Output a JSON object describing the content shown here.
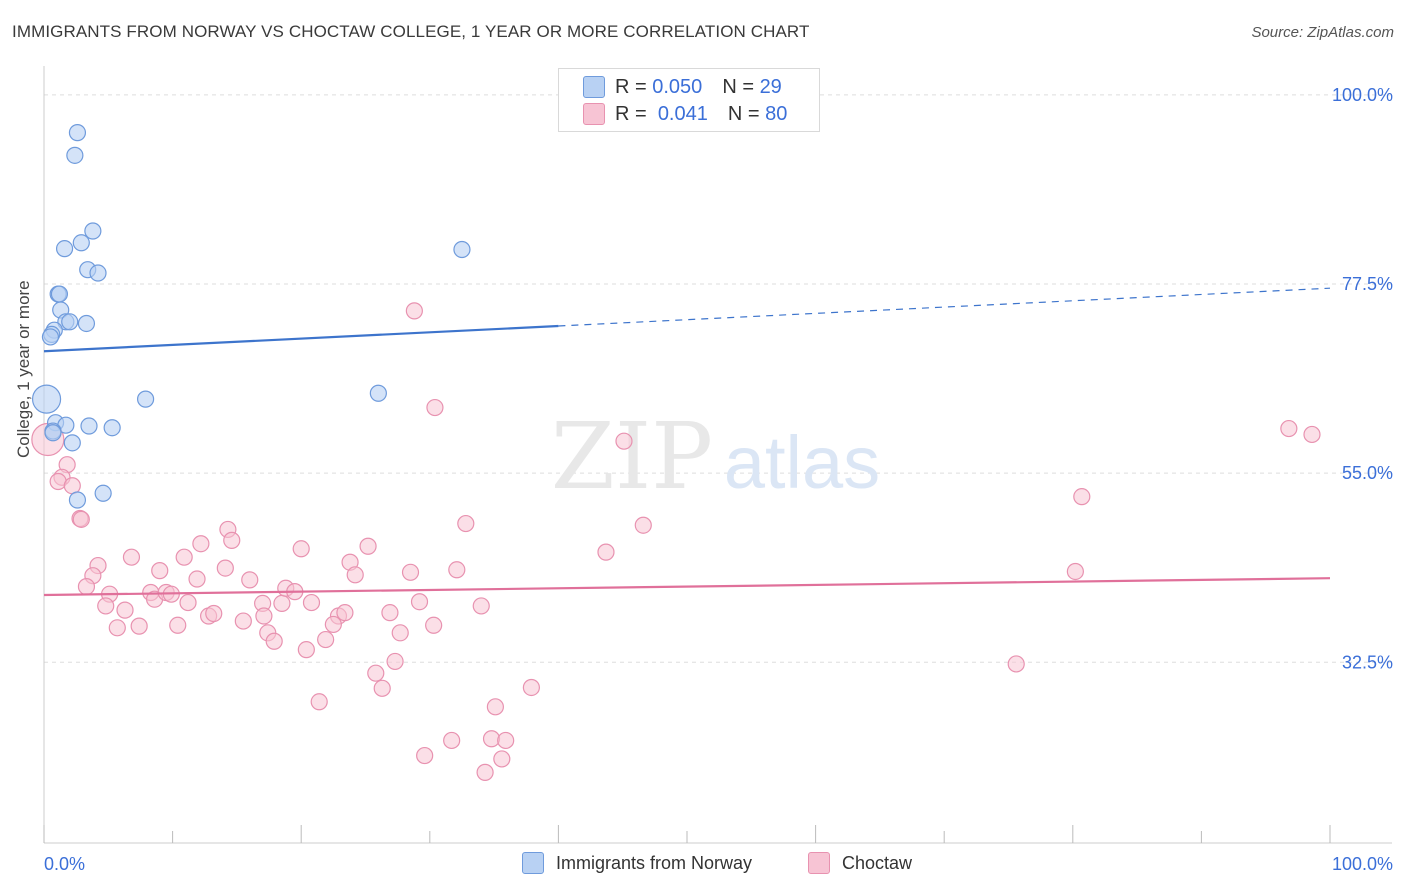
{
  "title": "IMMIGRANTS FROM NORWAY VS CHOCTAW COLLEGE, 1 YEAR OR MORE CORRELATION CHART",
  "source": "Source: ZipAtlas.com",
  "watermark": {
    "zip": "ZIP",
    "atlas": "atlas"
  },
  "legend": {
    "rows": [
      {
        "r_label": "R =",
        "r_value": "0.050",
        "n_label": "N =",
        "n_value": "29"
      },
      {
        "r_label": "R =",
        "r_value": "0.041",
        "n_label": "N =",
        "n_value": "80"
      }
    ]
  },
  "bottom_legend": {
    "norway": "Immigrants from Norway",
    "choctaw": "Choctaw"
  },
  "chart_data": {
    "type": "scatter",
    "title": "IMMIGRANTS FROM NORWAY VS CHOCTAW COLLEGE, 1 YEAR OR MORE CORRELATION CHART",
    "xlabel": "",
    "ylabel": "College, 1 year or more",
    "xlim": [
      0,
      100
    ],
    "ylim": [
      11,
      102
    ],
    "x_tick_labels": [
      "0.0%",
      "100.0%"
    ],
    "y_ticks": [
      32.5,
      55.0,
      77.5,
      100.0
    ],
    "y_tick_labels": [
      "32.5%",
      "55.0%",
      "77.5%",
      "100.0%"
    ],
    "colors": {
      "norway_fill": "#b8d1f3",
      "norway_stroke": "#6f9bdc",
      "norway_line": "#3d74cc",
      "choctaw_fill": "#f7c4d4",
      "choctaw_stroke": "#e892b0",
      "choctaw_line": "#e0709a",
      "tick_label": "#3b6fd8",
      "grid": "#dddddd"
    },
    "series": [
      {
        "name": "Immigrants from Norway",
        "r": 0.05,
        "n": 29,
        "trend": {
          "x0": 0,
          "y0": 69.5,
          "x1": 40,
          "y1": 72.5,
          "dash_x1": 100,
          "dash_y1": 77.0
        },
        "points": [
          [
            0.2,
            63.8,
            14
          ],
          [
            2.6,
            95.5,
            8
          ],
          [
            2.4,
            92.8,
            8
          ],
          [
            3.8,
            83.8,
            8
          ],
          [
            2.9,
            82.4,
            8
          ],
          [
            1.6,
            81.7,
            8
          ],
          [
            3.4,
            79.2,
            8
          ],
          [
            4.2,
            78.8,
            8
          ],
          [
            1.1,
            76.3,
            8
          ],
          [
            1.2,
            76.3,
            8
          ],
          [
            1.3,
            74.4,
            8
          ],
          [
            1.7,
            73.0,
            8
          ],
          [
            2.0,
            73.0,
            8
          ],
          [
            3.3,
            72.8,
            8
          ],
          [
            0.8,
            72.0,
            8
          ],
          [
            0.6,
            71.5,
            8
          ],
          [
            0.5,
            71.2,
            8
          ],
          [
            0.9,
            61.0,
            8
          ],
          [
            1.7,
            60.7,
            8
          ],
          [
            3.5,
            60.6,
            8
          ],
          [
            5.3,
            60.4,
            8
          ],
          [
            0.7,
            60.0,
            8
          ],
          [
            2.2,
            58.6,
            8
          ],
          [
            4.6,
            52.6,
            8
          ],
          [
            2.6,
            51.8,
            8
          ],
          [
            7.9,
            63.8,
            8
          ],
          [
            26.0,
            64.5,
            8
          ],
          [
            32.5,
            81.6,
            8
          ],
          [
            0.7,
            59.8,
            8
          ]
        ]
      },
      {
        "name": "Choctaw",
        "r": 0.041,
        "n": 80,
        "trend": {
          "x0": 0,
          "y0": 40.5,
          "x1": 100,
          "y1": 42.5
        },
        "points": [
          [
            0.3,
            59.0,
            16
          ],
          [
            1.8,
            56.0,
            8
          ],
          [
            1.4,
            54.5,
            8
          ],
          [
            1.1,
            54.0,
            8
          ],
          [
            2.2,
            53.5,
            8
          ],
          [
            2.8,
            49.6,
            8
          ],
          [
            2.9,
            49.5,
            8
          ],
          [
            4.2,
            44.0,
            8
          ],
          [
            3.8,
            42.8,
            8
          ],
          [
            3.3,
            41.5,
            8
          ],
          [
            5.1,
            40.6,
            8
          ],
          [
            4.8,
            39.2,
            8
          ],
          [
            6.3,
            38.7,
            8
          ],
          [
            5.7,
            36.6,
            8
          ],
          [
            7.4,
            36.8,
            8
          ],
          [
            6.8,
            45.0,
            8
          ],
          [
            9.0,
            43.4,
            8
          ],
          [
            8.3,
            40.8,
            8
          ],
          [
            8.6,
            40.0,
            8
          ],
          [
            9.5,
            40.8,
            8
          ],
          [
            9.9,
            40.6,
            8
          ],
          [
            10.9,
            45.0,
            8
          ],
          [
            12.2,
            46.6,
            8
          ],
          [
            11.9,
            42.4,
            8
          ],
          [
            10.4,
            36.9,
            8
          ],
          [
            11.2,
            39.6,
            8
          ],
          [
            12.8,
            38.0,
            8
          ],
          [
            13.2,
            38.3,
            8
          ],
          [
            14.3,
            48.3,
            8
          ],
          [
            14.6,
            47.0,
            8
          ],
          [
            14.1,
            43.7,
            8
          ],
          [
            16.0,
            42.3,
            8
          ],
          [
            15.5,
            37.4,
            8
          ],
          [
            17.0,
            39.5,
            8
          ],
          [
            17.1,
            38.0,
            8
          ],
          [
            17.4,
            36.0,
            8
          ],
          [
            17.9,
            35.0,
            8
          ],
          [
            18.5,
            39.5,
            8
          ],
          [
            18.8,
            41.3,
            8
          ],
          [
            19.5,
            40.9,
            8
          ],
          [
            20.0,
            46.0,
            8
          ],
          [
            20.4,
            34.0,
            8
          ],
          [
            20.8,
            39.6,
            8
          ],
          [
            21.4,
            27.8,
            8
          ],
          [
            21.9,
            35.2,
            8
          ],
          [
            22.9,
            38.0,
            8
          ],
          [
            22.5,
            37.0,
            8
          ],
          [
            23.4,
            38.4,
            8
          ],
          [
            23.8,
            44.4,
            8
          ],
          [
            24.2,
            42.9,
            8
          ],
          [
            25.2,
            46.3,
            8
          ],
          [
            25.8,
            31.2,
            8
          ],
          [
            26.3,
            29.4,
            8
          ],
          [
            26.9,
            38.4,
            8
          ],
          [
            27.3,
            32.6,
            8
          ],
          [
            27.7,
            36.0,
            8
          ],
          [
            28.5,
            43.2,
            8
          ],
          [
            29.2,
            39.7,
            8
          ],
          [
            30.3,
            36.9,
            8
          ],
          [
            29.6,
            21.4,
            8
          ],
          [
            32.1,
            43.5,
            8
          ],
          [
            32.8,
            49.0,
            8
          ],
          [
            34.0,
            39.2,
            8
          ],
          [
            34.3,
            19.4,
            8
          ],
          [
            34.8,
            23.4,
            8
          ],
          [
            35.1,
            27.2,
            8
          ],
          [
            35.6,
            21.0,
            8
          ],
          [
            35.9,
            23.2,
            8
          ],
          [
            37.9,
            29.5,
            8
          ],
          [
            31.7,
            23.2,
            8
          ],
          [
            30.4,
            62.8,
            8
          ],
          [
            28.8,
            74.3,
            8
          ],
          [
            45.1,
            58.8,
            8
          ],
          [
            43.7,
            45.6,
            8
          ],
          [
            46.6,
            48.8,
            8
          ],
          [
            75.6,
            32.3,
            8
          ],
          [
            80.2,
            43.3,
            8
          ],
          [
            80.7,
            52.2,
            8
          ],
          [
            96.8,
            60.3,
            8
          ],
          [
            98.6,
            59.6,
            8
          ]
        ]
      }
    ]
  }
}
